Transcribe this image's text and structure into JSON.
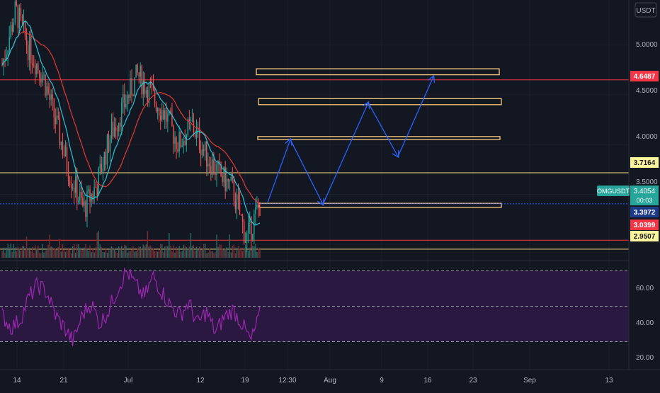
{
  "colors": {
    "background": "#131722",
    "grid": "#1e222d",
    "axis_text": "#b2b5be",
    "candle_up": "#26a69a",
    "candle_down": "#ef5350",
    "volume_up": "#2b6a63",
    "volume_down": "#7a2f33",
    "ma_fast": "#26c6da",
    "ma_slow": "#e53935",
    "line_red": "#f23645",
    "line_yellow": "#ffe082",
    "last_price": "#2962ff",
    "zone_border": "#ffcc80",
    "arrow": "#2962ff",
    "rsi_line": "#9c27b0",
    "rsi_band": "#2a1840",
    "label_red": "#f23645",
    "label_yellow": "#fff59d",
    "label_teal": "#26a69a",
    "label_blue": "#1e3a8a"
  },
  "price_axis": {
    "currency": "USDT",
    "ticks": [
      "5.0000",
      "4.5000",
      "4.0000",
      "3.5000"
    ]
  },
  "rsi_axis": {
    "ticks": [
      "60.00",
      "40.00",
      "20.00"
    ]
  },
  "time_axis": {
    "ticks": [
      "14",
      "21",
      "Jul",
      "12",
      "19",
      "12:30",
      "Aug",
      "9",
      "16",
      "23",
      "Sep",
      "13"
    ]
  },
  "price_labels": {
    "resistance_red": "4.6487",
    "resistance_yellow": "3.7164",
    "symbol": "OMGUSDT",
    "last_price": "3.4054",
    "countdown": "00:03",
    "current": "3.3972",
    "support_red": "3.0399",
    "support_yellow": "2.9507"
  },
  "chart_data": {
    "type": "candlestick",
    "symbol": "OMGUSDT",
    "currency": "USDT",
    "ylim": [
      2.85,
      5.45
    ],
    "x_ticks": [
      "14",
      "21",
      "Jul",
      "12",
      "19",
      "12:30",
      "Aug",
      "9",
      "16",
      "23",
      "Sep",
      "13"
    ],
    "y_ticks": [
      5.0,
      4.5,
      4.0,
      3.5
    ],
    "horizontal_lines": [
      {
        "value": 4.6487,
        "color": "red"
      },
      {
        "value": 3.7164,
        "color": "yellow"
      },
      {
        "value": 3.4054,
        "color": "blue-dotted",
        "label": "last price"
      },
      {
        "value": 3.0399,
        "color": "red"
      },
      {
        "value": 2.9507,
        "color": "yellow"
      }
    ],
    "zones": [
      {
        "low": 4.7,
        "high": 4.76
      },
      {
        "low": 4.4,
        "high": 4.46
      },
      {
        "low": 4.05,
        "high": 4.08
      },
      {
        "low": 3.37,
        "high": 3.41
      }
    ],
    "projection_path": [
      3.42,
      4.05,
      3.4,
      4.42,
      3.88,
      4.68
    ],
    "price_trend": [
      4.8,
      5.35,
      4.95,
      4.7,
      4.2,
      3.7,
      3.35,
      3.6,
      4.1,
      4.4,
      4.7,
      4.5,
      4.3,
      4.0,
      4.2,
      3.9,
      3.7,
      3.55,
      3.05,
      3.4
    ],
    "rsi": {
      "ylim": [
        15,
        75
      ],
      "levels": [
        70,
        50,
        30
      ],
      "y_ticks": [
        60,
        40,
        20
      ],
      "values": [
        45,
        38,
        42,
        55,
        62,
        58,
        45,
        38,
        30,
        45,
        52,
        40,
        48,
        60,
        70,
        62,
        55,
        67,
        58,
        50,
        45,
        52,
        40,
        47,
        35,
        44,
        48,
        40,
        30,
        45
      ]
    }
  }
}
